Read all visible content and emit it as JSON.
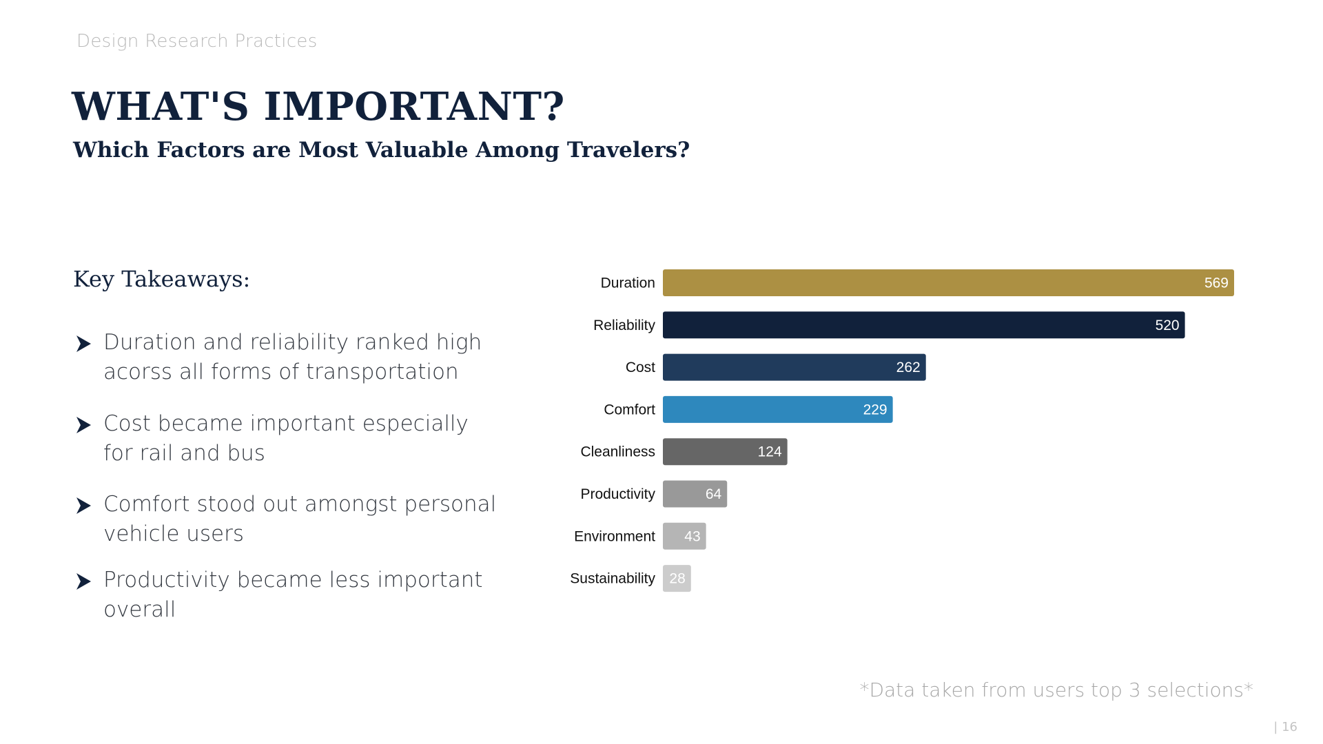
{
  "header": {
    "eyebrow": "Design Research Practices",
    "title": "WHAT'S IMPORTANT?",
    "subtitle": "Which Factors are Most Valuable Among Travelers?"
  },
  "takeaways": {
    "heading": "Key Takeaways:",
    "items": [
      "Duration and reliability ranked high acorss all forms of transportation",
      "Cost became important especially for rail and bus",
      "Comfort stood out amongst personal vehicle users",
      "Productivity became less important overall"
    ],
    "bullet_icon": "arrow-bullet-icon",
    "bullet_color": "#11213b"
  },
  "chart_data": {
    "type": "bar",
    "orientation": "horizontal",
    "categories": [
      "Duration",
      "Reliability",
      "Cost",
      "Comfort",
      "Cleanliness",
      "Productivity",
      "Environment",
      "Sustainability"
    ],
    "values": [
      569,
      520,
      262,
      229,
      124,
      64,
      43,
      28
    ],
    "colors": [
      "#ac9043",
      "#11213b",
      "#203b5c",
      "#2e88bd",
      "#666666",
      "#999999",
      "#b5b5b5",
      "#cccccc"
    ],
    "data_labels": true,
    "title": "",
    "xlabel": "",
    "ylabel": "",
    "xlim": [
      0,
      569
    ],
    "grid": false,
    "legend": "none"
  },
  "footnote": "*Data taken from users top 3 selections*",
  "page_number": "| 16"
}
